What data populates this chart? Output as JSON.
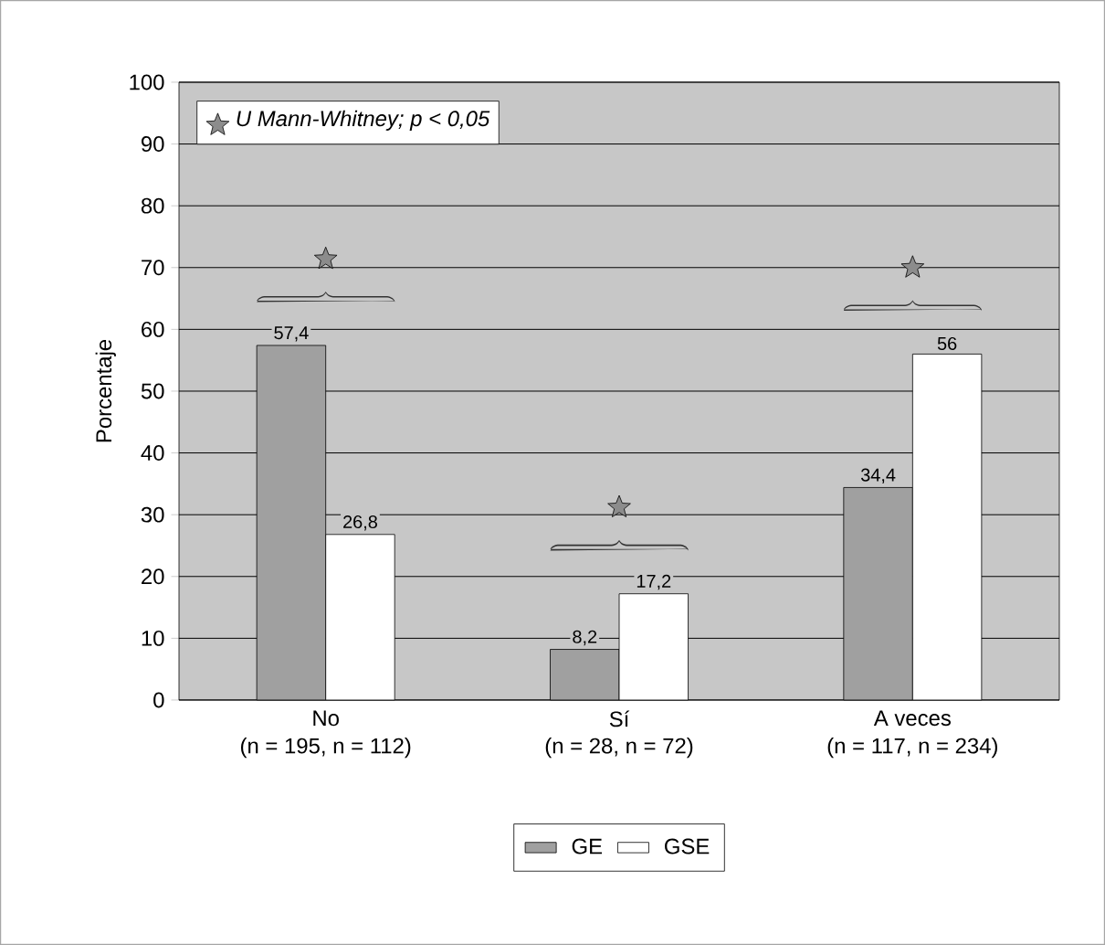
{
  "chart_data": {
    "type": "bar",
    "ylabel": "Porcentaje",
    "categories": [
      "No",
      "Sí",
      "A veces"
    ],
    "series": [
      {
        "name": "GE",
        "color": "#a0a0a0",
        "values": [
          57.4,
          8.2,
          34.4
        ],
        "value_labels": [
          "57,4",
          "8,2",
          "34,4"
        ]
      },
      {
        "name": "GSE",
        "color": "#ffffff",
        "values": [
          26.8,
          17.2,
          56
        ],
        "value_labels": [
          "26,8",
          "17,2",
          "56"
        ]
      }
    ],
    "ylim": [
      0,
      100
    ],
    "yticks": [
      0,
      10,
      20,
      30,
      40,
      50,
      60,
      70,
      80,
      90,
      100
    ],
    "grid": "y",
    "legend": "bottom",
    "annotations": [
      "U Mann-Whitney; p < 0,05",
      "(n = 195, n = 112)",
      "(n = 28, n = 72)",
      "(n = 117, n = 234)"
    ]
  }
}
